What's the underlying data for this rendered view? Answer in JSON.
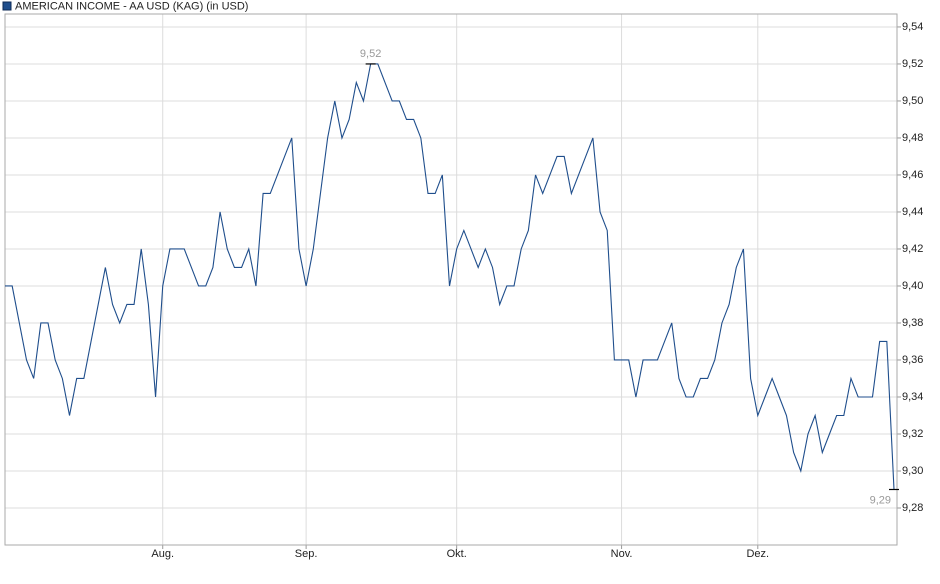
{
  "chart_data": {
    "type": "line",
    "series": [
      {
        "name": "AMERICAN INCOME - AA USD (KAG) (in USD)",
        "color": "#1f4e8c",
        "values": [
          9.4,
          9.4,
          9.38,
          9.36,
          9.35,
          9.38,
          9.38,
          9.36,
          9.35,
          9.33,
          9.35,
          9.35,
          9.37,
          9.39,
          9.41,
          9.39,
          9.38,
          9.39,
          9.39,
          9.42,
          9.39,
          9.34,
          9.4,
          9.42,
          9.42,
          9.42,
          9.41,
          9.4,
          9.4,
          9.41,
          9.44,
          9.42,
          9.41,
          9.41,
          9.42,
          9.4,
          9.45,
          9.45,
          9.46,
          9.47,
          9.48,
          9.42,
          9.4,
          9.42,
          9.45,
          9.48,
          9.5,
          9.48,
          9.49,
          9.51,
          9.5,
          9.52,
          9.52,
          9.51,
          9.5,
          9.5,
          9.49,
          9.49,
          9.48,
          9.45,
          9.45,
          9.46,
          9.4,
          9.42,
          9.43,
          9.42,
          9.41,
          9.42,
          9.41,
          9.39,
          9.4,
          9.4,
          9.42,
          9.43,
          9.46,
          9.45,
          9.46,
          9.47,
          9.47,
          9.45,
          9.46,
          9.47,
          9.48,
          9.44,
          9.43,
          9.36,
          9.36,
          9.36,
          9.34,
          9.36,
          9.36,
          9.36,
          9.37,
          9.38,
          9.35,
          9.34,
          9.34,
          9.35,
          9.35,
          9.36,
          9.38,
          9.39,
          9.41,
          9.42,
          9.35,
          9.33,
          9.34,
          9.35,
          9.34,
          9.33,
          9.31,
          9.3,
          9.32,
          9.33,
          9.31,
          9.32,
          9.33,
          9.33,
          9.35,
          9.34,
          9.34,
          9.34,
          9.37,
          9.37,
          9.29
        ],
        "value_labels": [
          null,
          null,
          null,
          null,
          null,
          null,
          null,
          null,
          null,
          null,
          null,
          null,
          null,
          null,
          null,
          null,
          null,
          null,
          null,
          null,
          null,
          null,
          null,
          null,
          null,
          null,
          null,
          null,
          null,
          null,
          null,
          null,
          null,
          null,
          null,
          null,
          null,
          null,
          null,
          null,
          null,
          null,
          null,
          null,
          null,
          null,
          null,
          null,
          null,
          null,
          null,
          "9,52",
          null,
          null,
          null,
          null,
          null,
          null,
          null,
          null,
          null,
          null,
          null,
          null,
          null,
          null,
          null,
          null,
          null,
          null,
          null,
          null,
          null,
          null,
          null,
          null,
          null,
          null,
          null,
          null,
          null,
          null,
          null,
          null,
          null,
          null,
          null,
          null,
          null,
          null,
          null,
          null,
          null,
          null,
          null,
          null,
          null,
          null,
          null,
          null,
          null,
          null,
          null,
          null,
          null,
          null,
          null,
          null,
          null,
          null,
          null,
          null,
          null,
          null,
          null,
          null,
          null,
          null,
          null,
          null,
          null,
          null,
          null,
          null,
          "9,29"
        ]
      }
    ],
    "categories": [
      null,
      null,
      null,
      null,
      null,
      null,
      null,
      null,
      null,
      null,
      null,
      null,
      null,
      null,
      null,
      null,
      null,
      null,
      null,
      null,
      null,
      null,
      "Aug.",
      null,
      null,
      null,
      null,
      null,
      null,
      null,
      null,
      null,
      null,
      null,
      null,
      null,
      null,
      null,
      null,
      null,
      null,
      null,
      "Sep.",
      null,
      null,
      null,
      null,
      null,
      null,
      null,
      null,
      null,
      null,
      null,
      null,
      null,
      null,
      null,
      null,
      null,
      null,
      null,
      null,
      "Okt.",
      null,
      null,
      null,
      null,
      null,
      null,
      null,
      null,
      null,
      null,
      null,
      null,
      null,
      null,
      null,
      null,
      null,
      null,
      null,
      null,
      null,
      null,
      "Nov.",
      null,
      null,
      null,
      null,
      null,
      null,
      null,
      null,
      null,
      null,
      null,
      null,
      null,
      null,
      null,
      null,
      null,
      null,
      "Dez.",
      null,
      null,
      null,
      null,
      null,
      null,
      null,
      null,
      null,
      null,
      null,
      null,
      null,
      null,
      null,
      null,
      null,
      null,
      null
    ],
    "ylim": [
      9.26,
      9.547
    ],
    "yticks": [
      {
        "value": 9.28,
        "label": "9,28"
      },
      {
        "value": 9.3,
        "label": "9,30"
      },
      {
        "value": 9.32,
        "label": "9,32"
      },
      {
        "value": 9.34,
        "label": "9,34"
      },
      {
        "value": 9.36,
        "label": "9,36"
      },
      {
        "value": 9.38,
        "label": "9,38"
      },
      {
        "value": 9.4,
        "label": "9,40"
      },
      {
        "value": 9.42,
        "label": "9,42"
      },
      {
        "value": 9.44,
        "label": "9,44"
      },
      {
        "value": 9.46,
        "label": "9,46"
      },
      {
        "value": 9.48,
        "label": "9,48"
      },
      {
        "value": 9.5,
        "label": "9,50"
      },
      {
        "value": 9.52,
        "label": "9,52"
      },
      {
        "value": 9.54,
        "label": "9,54"
      }
    ],
    "grid": true,
    "legend": "top-left"
  }
}
